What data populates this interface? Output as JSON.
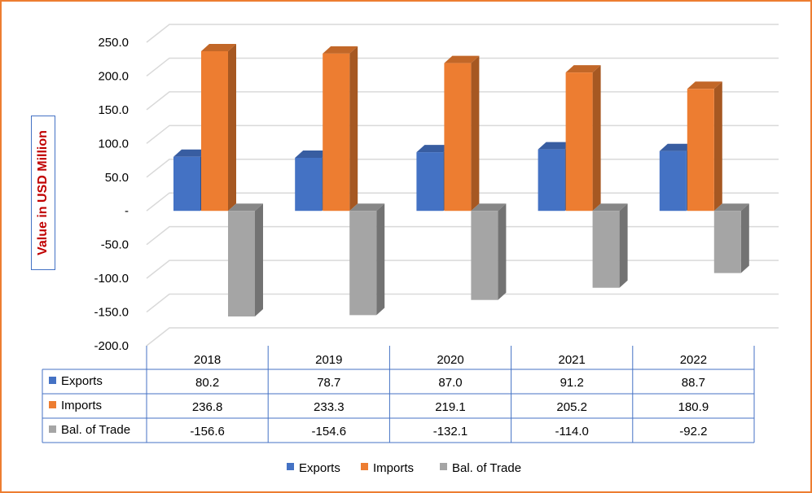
{
  "chart_data": {
    "type": "bar",
    "style": "3d-clustered-column-with-data-table",
    "title": "",
    "ylabel": "Value in USD Million",
    "xlabel": "",
    "categories": [
      "2018",
      "2019",
      "2020",
      "2021",
      "2022"
    ],
    "series": [
      {
        "name": "Exports",
        "color": "#4472C4",
        "values": [
          80.2,
          78.7,
          87.0,
          91.2,
          88.7
        ],
        "labels": [
          "80.2",
          "78.7",
          "87.0",
          "91.2",
          "88.7"
        ]
      },
      {
        "name": "Imports",
        "color": "#ED7D31",
        "values": [
          236.8,
          233.3,
          219.1,
          205.2,
          180.9
        ],
        "labels": [
          "236.8",
          "233.3",
          "219.1",
          "205.2",
          "180.9"
        ]
      },
      {
        "name": "Bal. of Trade",
        "color": "#A5A5A5",
        "values": [
          -156.6,
          -154.6,
          -132.1,
          -114.0,
          -92.2
        ],
        "labels": [
          "-156.6",
          "-154.6",
          "-132.1",
          "-114.0",
          "-92.2"
        ]
      }
    ],
    "ylim": [
      -200,
      250
    ],
    "yticks": [
      250,
      200,
      150,
      100,
      50,
      0,
      -50,
      -100,
      -150,
      -200
    ],
    "ytick_labels": [
      "250.0",
      "200.0",
      "150.0",
      "100.0",
      "50.0",
      "-",
      "-50.0",
      "-100.0",
      "-150.0",
      "-200.0"
    ],
    "grid": true,
    "legend": "bottom"
  }
}
